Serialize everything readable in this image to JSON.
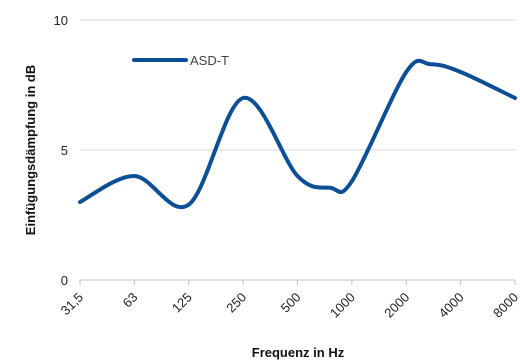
{
  "chart_data": {
    "type": "line",
    "categories": [
      "31,5",
      "63",
      "125",
      "250",
      "500",
      "1000",
      "2000",
      "4000",
      "8000"
    ],
    "x_positions": [
      0,
      1,
      2,
      3,
      4,
      5,
      6,
      7,
      8
    ],
    "series": [
      {
        "name": "ASD-T",
        "color": "#0d4f96",
        "values": [
          3.0,
          4.0,
          2.9,
          7.0,
          4.0,
          3.8,
          8.0,
          8.0,
          7.0
        ],
        "curve_points": [
          {
            "x": 0,
            "y": 3.0
          },
          {
            "x": 1,
            "y": 4.0
          },
          {
            "x": 2,
            "y": 2.9
          },
          {
            "x": 3,
            "y": 7.0
          },
          {
            "x": 4,
            "y": 4.0
          },
          {
            "x": 4.6,
            "y": 3.55
          },
          {
            "x": 5,
            "y": 3.8
          },
          {
            "x": 6,
            "y": 8.0
          },
          {
            "x": 6.45,
            "y": 8.3
          },
          {
            "x": 7,
            "y": 8.0
          },
          {
            "x": 8,
            "y": 7.0
          }
        ]
      }
    ],
    "xlabel": "Frequenz in Hz",
    "ylabel": "Einfügungsdämpfung in dB",
    "ylim": [
      0,
      10
    ],
    "yticks": [
      0,
      5,
      10
    ],
    "grid": "horizontal",
    "legend_position": "top-left",
    "gridline_color": "#d9d9d9",
    "axis_color": "#bfbfbf"
  }
}
